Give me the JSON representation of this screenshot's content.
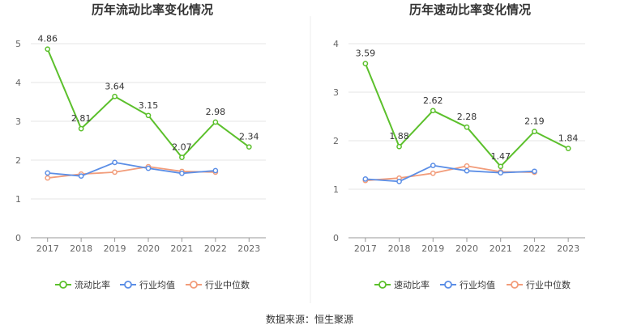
{
  "colors": {
    "current": "#5cc02c",
    "industry_avg": "#5b8ee6",
    "industry_median": "#f29c7a",
    "grid": "#e6e6e6",
    "axis": "#999999"
  },
  "source_text": "数据来源：恒生聚源",
  "chart_data": [
    {
      "type": "line",
      "title": "历年流动比率变化情况",
      "categories": [
        "2017",
        "2018",
        "2019",
        "2020",
        "2021",
        "2022",
        "2023"
      ],
      "ylim": [
        0,
        5
      ],
      "yticks": [
        "0",
        "1",
        "2",
        "3",
        "4",
        "5"
      ],
      "grid": true,
      "legend_position": "bottom",
      "series": [
        {
          "name": "流动比率",
          "color_key": "current",
          "values": [
            4.86,
            2.81,
            3.64,
            3.15,
            2.07,
            2.98,
            2.34
          ],
          "labels": [
            "4.86",
            "2.81",
            "3.64",
            "3.15",
            "2.07",
            "2.98",
            "2.34"
          ]
        },
        {
          "name": "行业均值",
          "color_key": "industry_avg",
          "values": [
            1.67,
            1.59,
            1.94,
            1.79,
            1.66,
            1.73,
            null
          ]
        },
        {
          "name": "行业中位数",
          "color_key": "industry_median",
          "values": [
            1.54,
            1.64,
            1.69,
            1.83,
            1.71,
            1.69,
            null
          ]
        }
      ]
    },
    {
      "type": "line",
      "title": "历年速动比率变化情况",
      "categories": [
        "2017",
        "2018",
        "2019",
        "2020",
        "2021",
        "2022",
        "2023"
      ],
      "ylim": [
        0,
        4
      ],
      "yticks": [
        "0",
        "1",
        "2",
        "3",
        "4"
      ],
      "grid": true,
      "legend_position": "bottom",
      "series": [
        {
          "name": "速动比率",
          "color_key": "current",
          "values": [
            3.59,
            1.88,
            2.62,
            2.28,
            1.47,
            2.19,
            1.84
          ],
          "labels": [
            "3.59",
            "1.88",
            "2.62",
            "2.28",
            "1.47",
            "2.19",
            "1.84"
          ]
        },
        {
          "name": "行业均值",
          "color_key": "industry_avg",
          "values": [
            1.21,
            1.16,
            1.49,
            1.38,
            1.34,
            1.37,
            null
          ]
        },
        {
          "name": "行业中位数",
          "color_key": "industry_median",
          "values": [
            1.18,
            1.23,
            1.33,
            1.48,
            1.36,
            1.35,
            null
          ]
        }
      ]
    }
  ]
}
